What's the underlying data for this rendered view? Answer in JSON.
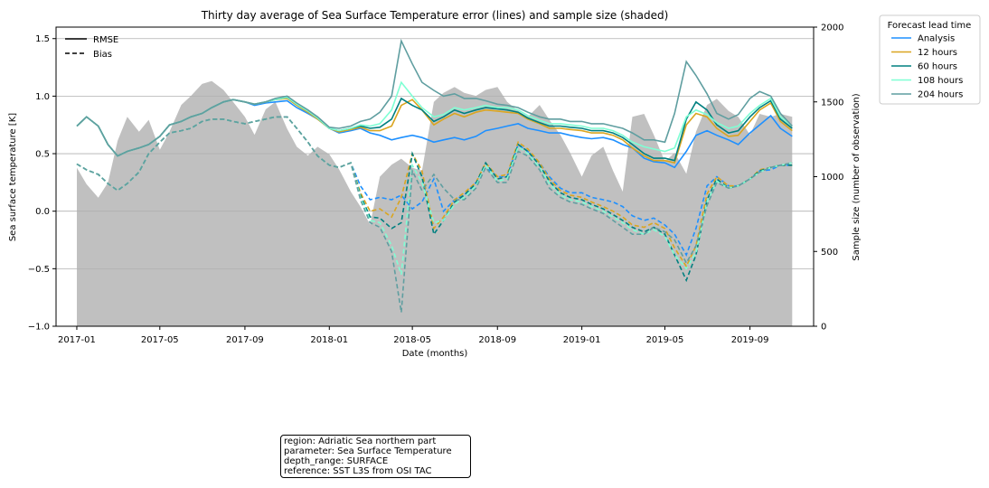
{
  "chart_data": {
    "type": "line",
    "title": "Thirty day average of Sea Surface Temperature error (lines) and sample size (shaded)",
    "xlabel": "Date (months)",
    "ylabel": "Sea surface temperature [K]",
    "y2label": "Sample size (number of observation)",
    "xlim": [
      "2016-12-02",
      "2019-12-02"
    ],
    "ylim": [
      -1.0,
      1.6
    ],
    "y2lim": [
      0,
      2000
    ],
    "xticks": [
      "2017-01",
      "2017-05",
      "2017-09",
      "2018-01",
      "2018-05",
      "2018-09",
      "2019-01",
      "2019-05",
      "2019-09"
    ],
    "yticks": [
      "−1.0",
      "−0.5",
      "0.0",
      "0.5",
      "1.0",
      "1.5"
    ],
    "y2ticks": [
      "0",
      "500",
      "1000",
      "1500",
      "2000"
    ],
    "grid": "horizontal",
    "style_legend": {
      "placement": "upper-left",
      "entries": [
        {
          "label": "RMSE",
          "dash": "solid"
        },
        {
          "label": "Bias",
          "dash": "dashed"
        }
      ]
    },
    "lead_legend": {
      "title": "Forecast lead time",
      "placement": "outside-right"
    },
    "series": [
      {
        "name": "Analysis",
        "color": "#1e90ff"
      },
      {
        "name": "12 hours",
        "color": "#daa520"
      },
      {
        "name": "60 hours",
        "color": "#008080"
      },
      {
        "name": "108 hours",
        "color": "#7fffd4"
      },
      {
        "name": "204 hours",
        "color": "#5f9ea0"
      }
    ],
    "x": [
      "2017-01-01",
      "2017-01-15",
      "2017-02-01",
      "2017-02-15",
      "2017-03-01",
      "2017-03-15",
      "2017-04-01",
      "2017-04-15",
      "2017-05-01",
      "2017-05-15",
      "2017-06-01",
      "2017-06-15",
      "2017-07-01",
      "2017-07-15",
      "2017-08-01",
      "2017-08-15",
      "2017-09-01",
      "2017-09-15",
      "2017-10-01",
      "2017-10-15",
      "2017-11-01",
      "2017-11-15",
      "2017-12-01",
      "2017-12-15",
      "2018-01-01",
      "2018-01-15",
      "2018-02-01",
      "2018-02-15",
      "2018-03-01",
      "2018-03-15",
      "2018-04-01",
      "2018-04-15",
      "2018-05-01",
      "2018-05-15",
      "2018-06-01",
      "2018-06-15",
      "2018-07-01",
      "2018-07-15",
      "2018-08-01",
      "2018-08-15",
      "2018-09-01",
      "2018-09-15",
      "2018-10-01",
      "2018-10-15",
      "2018-11-01",
      "2018-11-15",
      "2018-12-01",
      "2018-12-15",
      "2019-01-01",
      "2019-01-15",
      "2019-02-01",
      "2019-02-15",
      "2019-03-01",
      "2019-03-15",
      "2019-04-01",
      "2019-04-15",
      "2019-05-01",
      "2019-05-15",
      "2019-06-01",
      "2019-06-15",
      "2019-07-01",
      "2019-07-15",
      "2019-08-01",
      "2019-08-15",
      "2019-09-01",
      "2019-09-15",
      "2019-10-01",
      "2019-10-15",
      "2019-11-01"
    ],
    "rmse": {
      "Analysis": [
        0.74,
        0.82,
        0.74,
        0.58,
        0.48,
        0.52,
        0.55,
        0.58,
        0.65,
        0.75,
        0.78,
        0.82,
        0.85,
        0.9,
        0.95,
        0.97,
        0.95,
        0.92,
        0.94,
        0.95,
        0.96,
        0.9,
        0.85,
        0.8,
        0.72,
        0.68,
        0.7,
        0.72,
        0.68,
        0.66,
        0.62,
        0.64,
        0.66,
        0.64,
        0.6,
        0.62,
        0.64,
        0.62,
        0.65,
        0.7,
        0.72,
        0.74,
        0.76,
        0.72,
        0.7,
        0.68,
        0.68,
        0.66,
        0.64,
        0.63,
        0.64,
        0.62,
        0.58,
        0.55,
        0.46,
        0.43,
        0.42,
        0.38,
        0.52,
        0.66,
        0.7,
        0.66,
        0.62,
        0.58,
        0.68,
        0.75,
        0.83,
        0.72,
        0.65
      ],
      "12 hours": [
        0.74,
        0.82,
        0.74,
        0.58,
        0.48,
        0.52,
        0.55,
        0.58,
        0.65,
        0.75,
        0.78,
        0.82,
        0.85,
        0.9,
        0.95,
        0.97,
        0.95,
        0.93,
        0.95,
        0.97,
        0.98,
        0.92,
        0.86,
        0.8,
        0.72,
        0.69,
        0.71,
        0.73,
        0.7,
        0.7,
        0.74,
        0.92,
        0.97,
        0.88,
        0.75,
        0.8,
        0.85,
        0.82,
        0.86,
        0.88,
        0.87,
        0.86,
        0.85,
        0.8,
        0.76,
        0.72,
        0.72,
        0.71,
        0.7,
        0.68,
        0.68,
        0.66,
        0.62,
        0.55,
        0.48,
        0.44,
        0.44,
        0.42,
        0.75,
        0.85,
        0.82,
        0.72,
        0.65,
        0.66,
        0.78,
        0.88,
        0.94,
        0.78,
        0.7
      ],
      "60 hours": [
        0.74,
        0.82,
        0.74,
        0.58,
        0.48,
        0.52,
        0.55,
        0.58,
        0.65,
        0.75,
        0.78,
        0.82,
        0.85,
        0.9,
        0.95,
        0.97,
        0.95,
        0.93,
        0.95,
        0.97,
        0.99,
        0.93,
        0.87,
        0.81,
        0.72,
        0.7,
        0.72,
        0.74,
        0.72,
        0.73,
        0.8,
        0.98,
        0.92,
        0.88,
        0.78,
        0.82,
        0.88,
        0.85,
        0.88,
        0.9,
        0.89,
        0.88,
        0.86,
        0.81,
        0.77,
        0.74,
        0.74,
        0.73,
        0.72,
        0.7,
        0.7,
        0.68,
        0.64,
        0.58,
        0.5,
        0.46,
        0.46,
        0.44,
        0.8,
        0.95,
        0.88,
        0.75,
        0.68,
        0.7,
        0.82,
        0.9,
        0.96,
        0.8,
        0.72
      ],
      "108 hours": [
        0.74,
        0.82,
        0.74,
        0.58,
        0.48,
        0.52,
        0.55,
        0.58,
        0.65,
        0.75,
        0.78,
        0.82,
        0.85,
        0.9,
        0.95,
        0.97,
        0.95,
        0.93,
        0.95,
        0.97,
        0.99,
        0.93,
        0.87,
        0.81,
        0.72,
        0.7,
        0.72,
        0.75,
        0.74,
        0.76,
        0.88,
        1.12,
        1.0,
        0.9,
        0.82,
        0.84,
        0.9,
        0.88,
        0.9,
        0.92,
        0.9,
        0.9,
        0.88,
        0.83,
        0.79,
        0.76,
        0.76,
        0.75,
        0.74,
        0.72,
        0.72,
        0.7,
        0.66,
        0.6,
        0.56,
        0.54,
        0.52,
        0.55,
        0.82,
        0.88,
        0.84,
        0.77,
        0.72,
        0.74,
        0.85,
        0.92,
        0.98,
        0.82,
        0.74
      ],
      "204 hours": [
        0.74,
        0.82,
        0.74,
        0.58,
        0.48,
        0.52,
        0.55,
        0.58,
        0.65,
        0.75,
        0.78,
        0.82,
        0.85,
        0.9,
        0.95,
        0.97,
        0.95,
        0.93,
        0.95,
        0.98,
        1.0,
        0.94,
        0.88,
        0.82,
        0.73,
        0.72,
        0.74,
        0.78,
        0.8,
        0.86,
        1.0,
        1.48,
        1.28,
        1.12,
        1.05,
        1.0,
        1.02,
        0.98,
        0.98,
        0.96,
        0.93,
        0.92,
        0.9,
        0.86,
        0.82,
        0.8,
        0.8,
        0.78,
        0.78,
        0.76,
        0.76,
        0.74,
        0.72,
        0.68,
        0.62,
        0.62,
        0.6,
        0.85,
        1.3,
        1.18,
        1.02,
        0.85,
        0.8,
        0.84,
        0.98,
        1.04,
        1.0,
        0.85,
        0.74
      ]
    },
    "bias": {
      "Analysis": [
        0.41,
        0.36,
        0.32,
        0.24,
        0.18,
        0.24,
        0.34,
        0.5,
        0.6,
        0.68,
        0.7,
        0.72,
        0.78,
        0.8,
        0.8,
        0.78,
        0.76,
        0.78,
        0.8,
        0.82,
        0.82,
        0.72,
        0.6,
        0.48,
        0.4,
        0.38,
        0.42,
        0.22,
        0.1,
        0.12,
        0.1,
        0.14,
        0.02,
        0.08,
        0.28,
        0.0,
        0.1,
        0.14,
        0.25,
        0.38,
        0.3,
        0.3,
        0.58,
        0.52,
        0.42,
        0.3,
        0.2,
        0.16,
        0.16,
        0.12,
        0.1,
        0.08,
        0.04,
        -0.04,
        -0.08,
        -0.06,
        -0.12,
        -0.2,
        -0.38,
        -0.15,
        0.22,
        0.3,
        0.22,
        0.22,
        0.28,
        0.35,
        0.36,
        0.4,
        0.4
      ],
      "12 hours": [
        0.41,
        0.36,
        0.32,
        0.24,
        0.18,
        0.24,
        0.34,
        0.5,
        0.6,
        0.68,
        0.7,
        0.72,
        0.78,
        0.8,
        0.8,
        0.78,
        0.76,
        0.78,
        0.8,
        0.82,
        0.82,
        0.72,
        0.6,
        0.48,
        0.4,
        0.38,
        0.42,
        0.16,
        0.0,
        0.02,
        -0.05,
        0.12,
        0.5,
        0.35,
        -0.15,
        -0.05,
        0.1,
        0.16,
        0.25,
        0.42,
        0.3,
        0.32,
        0.6,
        0.54,
        0.42,
        0.28,
        0.18,
        0.14,
        0.12,
        0.08,
        0.04,
        0.0,
        -0.05,
        -0.12,
        -0.14,
        -0.1,
        -0.15,
        -0.32,
        -0.48,
        -0.3,
        0.15,
        0.3,
        0.22,
        0.22,
        0.28,
        0.36,
        0.38,
        0.4,
        0.4
      ],
      "60 hours": [
        0.41,
        0.36,
        0.32,
        0.24,
        0.18,
        0.24,
        0.34,
        0.5,
        0.6,
        0.68,
        0.7,
        0.72,
        0.78,
        0.8,
        0.8,
        0.78,
        0.76,
        0.78,
        0.8,
        0.82,
        0.82,
        0.72,
        0.6,
        0.48,
        0.4,
        0.38,
        0.42,
        0.14,
        -0.05,
        -0.06,
        -0.15,
        -0.1,
        0.5,
        0.3,
        -0.2,
        -0.08,
        0.08,
        0.14,
        0.24,
        0.42,
        0.28,
        0.3,
        0.58,
        0.52,
        0.4,
        0.26,
        0.16,
        0.12,
        0.1,
        0.06,
        0.02,
        -0.03,
        -0.08,
        -0.14,
        -0.18,
        -0.14,
        -0.2,
        -0.38,
        -0.6,
        -0.38,
        0.1,
        0.28,
        0.2,
        0.22,
        0.28,
        0.35,
        0.38,
        0.4,
        0.4
      ],
      "108 hours": [
        0.41,
        0.36,
        0.32,
        0.24,
        0.18,
        0.24,
        0.34,
        0.5,
        0.6,
        0.68,
        0.7,
        0.72,
        0.78,
        0.8,
        0.8,
        0.78,
        0.76,
        0.78,
        0.8,
        0.82,
        0.82,
        0.72,
        0.6,
        0.48,
        0.4,
        0.38,
        0.42,
        0.12,
        -0.08,
        -0.1,
        -0.3,
        -0.55,
        0.4,
        0.25,
        -0.1,
        -0.08,
        0.06,
        0.12,
        0.22,
        0.4,
        0.26,
        0.28,
        0.56,
        0.5,
        0.38,
        0.24,
        0.14,
        0.1,
        0.08,
        0.04,
        0.0,
        -0.05,
        -0.1,
        -0.16,
        -0.2,
        -0.16,
        -0.22,
        -0.38,
        -0.5,
        -0.36,
        0.08,
        0.26,
        0.2,
        0.22,
        0.28,
        0.34,
        0.38,
        0.4,
        0.42
      ],
      "204 hours": [
        0.41,
        0.36,
        0.32,
        0.24,
        0.18,
        0.24,
        0.34,
        0.5,
        0.6,
        0.68,
        0.7,
        0.72,
        0.78,
        0.8,
        0.8,
        0.78,
        0.76,
        0.78,
        0.8,
        0.82,
        0.82,
        0.72,
        0.6,
        0.48,
        0.4,
        0.38,
        0.42,
        0.1,
        -0.1,
        -0.14,
        -0.35,
        -0.88,
        0.35,
        0.18,
        0.32,
        0.2,
        0.1,
        0.1,
        0.2,
        0.38,
        0.25,
        0.25,
        0.52,
        0.48,
        0.36,
        0.2,
        0.12,
        0.08,
        0.06,
        0.02,
        -0.02,
        -0.08,
        -0.14,
        -0.2,
        -0.2,
        -0.14,
        -0.18,
        -0.25,
        -0.45,
        -0.3,
        0.05,
        0.25,
        0.2,
        0.22,
        0.28,
        0.34,
        0.38,
        0.4,
        0.42
      ]
    },
    "sample_size": [
      1060,
      950,
      860,
      960,
      1240,
      1400,
      1300,
      1380,
      1180,
      1300,
      1480,
      1540,
      1620,
      1640,
      1580,
      1500,
      1400,
      1280,
      1450,
      1500,
      1320,
      1200,
      1140,
      1200,
      1150,
      1050,
      900,
      800,
      680,
      1000,
      1080,
      1120,
      1060,
      1040,
      1500,
      1560,
      1600,
      1560,
      1540,
      1580,
      1600,
      1500,
      1440,
      1400,
      1480,
      1380,
      1280,
      1160,
      1000,
      1140,
      1200,
      1040,
      900,
      1400,
      1420,
      1280,
      1100,
      1160,
      1020,
      1300,
      1480,
      1520,
      1440,
      1400,
      1280,
      1420,
      1400,
      1420,
      1400
    ]
  },
  "info_box": {
    "lines": [
      "region: Adriatic Sea northern part",
      "parameter: Sea Surface Temperature",
      "depth_range: SURFACE",
      "reference: SST L3S from OSI TAC"
    ]
  },
  "colors": {
    "sample_fill": "#c0c0c0",
    "grid": "#b0b0b0"
  }
}
